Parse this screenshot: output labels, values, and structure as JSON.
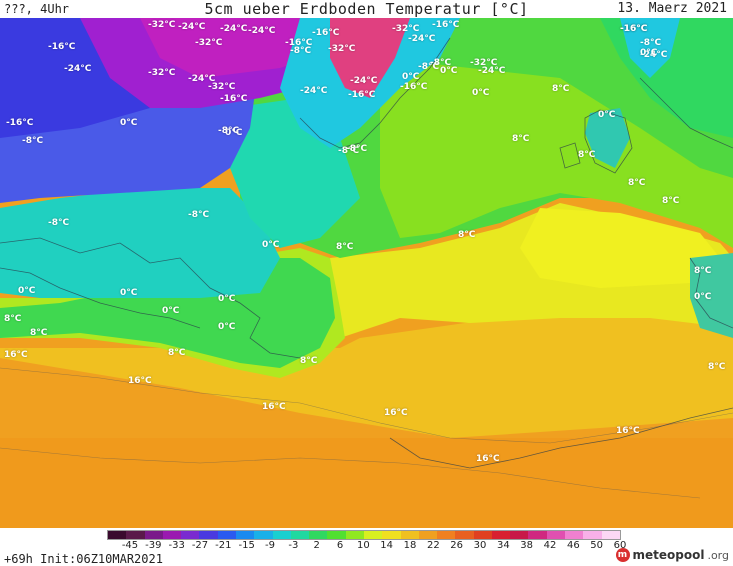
{
  "header": {
    "left": "???, 4Uhr",
    "title": "5cm ueber Erdboden Temperatur [°C]",
    "date": "13. Maerz 2021"
  },
  "labels": [
    {
      "t": "-32°C"
    },
    {
      "t": "-24°C"
    },
    {
      "t": "-24°C"
    },
    {
      "t": "-24°C"
    },
    {
      "t": "-32°C"
    },
    {
      "t": "-16°C"
    },
    {
      "t": "-16°C"
    },
    {
      "t": "-16°C"
    },
    {
      "t": "-32°C"
    },
    {
      "t": "-24°C"
    },
    {
      "t": "-16°C"
    },
    {
      "t": "-8°C"
    },
    {
      "t": "-32°C"
    },
    {
      "t": "-8°C"
    },
    {
      "t": "-24°C"
    },
    {
      "t": "-32°C"
    },
    {
      "t": "-24°C"
    },
    {
      "t": "-32°C"
    },
    {
      "t": "-24°C"
    },
    {
      "t": "-16°C"
    },
    {
      "t": "-24°C"
    },
    {
      "t": "-16°C"
    },
    {
      "t": "0°C"
    },
    {
      "t": "-8°C"
    },
    {
      "t": "0°C"
    },
    {
      "t": "-32°C"
    },
    {
      "t": "-24°C"
    },
    {
      "t": "-16°C"
    },
    {
      "t": "-8°C"
    },
    {
      "t": "-24°C"
    },
    {
      "t": "-16°C"
    },
    {
      "t": "-8°C"
    },
    {
      "t": "0°C"
    },
    {
      "t": "-16°C"
    },
    {
      "t": "0°C"
    },
    {
      "t": "-8°C"
    },
    {
      "t": "-8°C"
    },
    {
      "t": "-8°C"
    },
    {
      "t": "-8°C"
    },
    {
      "t": "0°C"
    },
    {
      "t": "8°C"
    },
    {
      "t": "0°C"
    },
    {
      "t": "8°C"
    },
    {
      "t": "0°C"
    },
    {
      "t": "8°C"
    },
    {
      "t": "0°C"
    },
    {
      "t": "8°C"
    },
    {
      "t": "0°C"
    },
    {
      "t": "8°C"
    },
    {
      "t": "0°C"
    },
    {
      "t": "8°C"
    },
    {
      "t": "0°C"
    },
    {
      "t": "0°C"
    },
    {
      "t": "8°C"
    },
    {
      "t": "0°C"
    },
    {
      "t": "8°C"
    },
    {
      "t": "16°C"
    },
    {
      "t": "8°C"
    },
    {
      "t": "8°C"
    },
    {
      "t": "16°C"
    },
    {
      "t": "8°C"
    },
    {
      "t": "16°C"
    },
    {
      "t": "16°C"
    },
    {
      "t": "16°C"
    },
    {
      "t": "16°C"
    },
    {
      "t": "-16°C"
    },
    {
      "t": "8°C"
    },
    {
      "t": "8°C"
    },
    {
      "t": "0°C"
    },
    {
      "t": "-8°C"
    }
  ],
  "colorbar": {
    "ticks": [
      "-45",
      "-39",
      "-33",
      "-27",
      "-21",
      "-15",
      "-9",
      "-3",
      "2",
      "6",
      "10",
      "14",
      "18",
      "22",
      "26",
      "30",
      "34",
      "38",
      "42",
      "46",
      "50",
      "60"
    ],
    "colors": [
      "#3a0a2e",
      "#5a1a4a",
      "#7a1a8a",
      "#9a1ab0",
      "#7a2ad0",
      "#4a3ae0",
      "#2a5af0",
      "#1a8af0",
      "#1ab0e8",
      "#1ad0d0",
      "#20d8a0",
      "#30d860",
      "#50e030",
      "#90e820",
      "#d8f020",
      "#f0e020",
      "#f0c020",
      "#f0a020",
      "#f08020",
      "#e86020",
      "#e04020",
      "#d82030",
      "#c81848",
      "#d02880",
      "#e050b0",
      "#f080d0",
      "#f8b0e8",
      "#fcd8f4"
    ]
  },
  "footer": {
    "init": "+69h Init:06Z10MAR2021",
    "logo_main": "meteopool",
    "logo_tld": ".org",
    "logo_mark": "m"
  }
}
